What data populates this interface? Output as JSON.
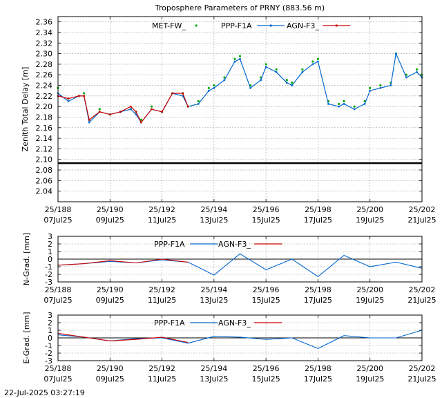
{
  "chart_data": [
    {
      "type": "line",
      "title": "Troposphere Parameters of PRNY (883.56 m)",
      "xlabel": "",
      "ylabel": "Zenith Total Delay [m]",
      "xlim": [
        188,
        202
      ],
      "ylim": [
        2.02,
        2.37
      ],
      "grid": true,
      "legend_position": "top",
      "x_ticks": [
        {
          "line1": "25/188",
          "line2": "07Jul25"
        },
        {
          "line1": "25/190",
          "line2": "09Jul25"
        },
        {
          "line1": "25/192",
          "line2": "11Jul25"
        },
        {
          "line1": "25/194",
          "line2": "13Jul25"
        },
        {
          "line1": "25/196",
          "line2": "15Jul25"
        },
        {
          "line1": "25/198",
          "line2": "17Jul25"
        },
        {
          "line1": "25/200",
          "line2": "19Jul25"
        },
        {
          "line1": "25/202",
          "line2": "21Jul25"
        }
      ],
      "y_ticks": [
        "2.04",
        "2.06",
        "2.08",
        "2.10",
        "2.12",
        "2.14",
        "2.16",
        "2.18",
        "2.20",
        "2.22",
        "2.24",
        "2.26",
        "2.28",
        "2.30",
        "2.32",
        "2.34",
        "2.36"
      ],
      "series": [
        {
          "name": "MET-FW_",
          "color": "#00aa00",
          "style": "points",
          "x": [
            188.0,
            188.4,
            188.8,
            189.0,
            189.2,
            189.6,
            190.0,
            190.4,
            190.8,
            191.0,
            191.2,
            191.6,
            192.0,
            192.4,
            192.8,
            193.0,
            193.4,
            193.8,
            194.0,
            194.4,
            194.8,
            195.0,
            195.4,
            195.8,
            196.0,
            196.4,
            196.8,
            197.0,
            197.4,
            197.8,
            198.0,
            198.4,
            198.8,
            199.0,
            199.4,
            199.8,
            200.0,
            200.4,
            200.8,
            201.0,
            201.4,
            201.8,
            202.0
          ],
          "y": [
            2.235,
            2.215,
            2.22,
            2.225,
            2.175,
            2.195,
            2.185,
            2.19,
            2.195,
            2.19,
            2.175,
            2.2,
            2.19,
            2.225,
            2.225,
            2.2,
            2.21,
            2.235,
            2.24,
            2.255,
            2.29,
            2.295,
            2.24,
            2.255,
            2.28,
            2.27,
            2.25,
            2.245,
            2.27,
            2.285,
            2.29,
            2.21,
            2.205,
            2.21,
            2.2,
            2.21,
            2.235,
            2.24,
            2.245,
            2.3,
            2.26,
            2.27,
            2.26
          ]
        },
        {
          "name": "PPP-F1A",
          "color": "#0066cc",
          "style": "linespoints",
          "x": [
            188.0,
            188.4,
            188.8,
            189.0,
            189.2,
            189.6,
            190.0,
            190.4,
            190.8,
            191.0,
            191.2,
            191.6,
            192.0,
            192.4,
            192.8,
            193.0,
            193.4,
            193.8,
            194.0,
            194.4,
            194.8,
            195.0,
            195.4,
            195.8,
            196.0,
            196.4,
            196.8,
            197.0,
            197.4,
            197.8,
            198.0,
            198.4,
            198.8,
            199.0,
            199.4,
            199.8,
            200.0,
            200.4,
            200.8,
            201.0,
            201.4,
            201.8,
            202.0
          ],
          "y": [
            2.225,
            2.21,
            2.22,
            2.22,
            2.17,
            2.19,
            2.185,
            2.19,
            2.195,
            2.185,
            2.17,
            2.195,
            2.19,
            2.225,
            2.22,
            2.2,
            2.205,
            2.23,
            2.235,
            2.25,
            2.285,
            2.29,
            2.235,
            2.25,
            2.275,
            2.265,
            2.245,
            2.24,
            2.265,
            2.28,
            2.285,
            2.205,
            2.2,
            2.205,
            2.195,
            2.205,
            2.23,
            2.235,
            2.24,
            2.3,
            2.255,
            2.265,
            2.255
          ]
        },
        {
          "name": "AGN-F3_",
          "color": "#cc0000",
          "style": "linespoints",
          "x": [
            188.0,
            188.4,
            188.8,
            189.0,
            189.2,
            189.6,
            190.0,
            190.4,
            190.8,
            191.0,
            191.2,
            191.6,
            192.0,
            192.4,
            192.8,
            193.0
          ],
          "y": [
            2.22,
            2.215,
            2.22,
            2.22,
            2.175,
            2.19,
            2.185,
            2.19,
            2.2,
            2.19,
            2.17,
            2.195,
            2.19,
            2.225,
            2.225,
            2.2
          ]
        }
      ],
      "reference_line": {
        "y": 2.093,
        "color": "#000000"
      }
    },
    {
      "type": "line",
      "title": "",
      "xlabel": "",
      "ylabel": "N-Grad. [mm]",
      "xlim": [
        188,
        202
      ],
      "ylim": [
        -3,
        3
      ],
      "grid": true,
      "legend_position": "top",
      "x_ticks": [
        {
          "line1": "25/188",
          "line2": "07Jul25"
        },
        {
          "line1": "25/190",
          "line2": "09Jul25"
        },
        {
          "line1": "25/192",
          "line2": "11Jul25"
        },
        {
          "line1": "25/194",
          "line2": "13Jul25"
        },
        {
          "line1": "25/196",
          "line2": "15Jul25"
        },
        {
          "line1": "25/198",
          "line2": "17Jul25"
        },
        {
          "line1": "25/200",
          "line2": "19Jul25"
        },
        {
          "line1": "25/202",
          "line2": "21Jul25"
        }
      ],
      "y_ticks": [
        "-3",
        "-2",
        "-1",
        "0",
        "1",
        "2",
        "3"
      ],
      "series": [
        {
          "name": "PPP-F1A",
          "color": "#0066cc",
          "style": "lines",
          "x": [
            188,
            189,
            190,
            191,
            192,
            193,
            194,
            195,
            196,
            197,
            198,
            199,
            200,
            201,
            202
          ],
          "y": [
            -0.8,
            -0.6,
            -0.3,
            -0.5,
            -0.1,
            -0.4,
            -2.1,
            0.7,
            -1.4,
            0.0,
            -2.3,
            0.5,
            -1.0,
            -0.4,
            -1.2
          ]
        },
        {
          "name": "AGN-F3_",
          "color": "#cc0000",
          "style": "lines",
          "x": [
            188,
            189,
            190,
            191,
            192,
            193
          ],
          "y": [
            -0.8,
            -0.6,
            -0.2,
            -0.5,
            0.0,
            -0.4
          ]
        }
      ],
      "reference_line": {
        "y": 0,
        "color": "#000000"
      }
    },
    {
      "type": "line",
      "title": "",
      "xlabel": "",
      "ylabel": "E-Grad. [mm]",
      "xlim": [
        188,
        202
      ],
      "ylim": [
        -3,
        3
      ],
      "grid": true,
      "legend_position": "top",
      "x_ticks": [
        {
          "line1": "25/188",
          "line2": "07Jul25"
        },
        {
          "line1": "25/190",
          "line2": "09Jul25"
        },
        {
          "line1": "25/192",
          "line2": "11Jul25"
        },
        {
          "line1": "25/194",
          "line2": "13Jul25"
        },
        {
          "line1": "25/196",
          "line2": "15Jul25"
        },
        {
          "line1": "25/198",
          "line2": "17Jul25"
        },
        {
          "line1": "25/200",
          "line2": "19Jul25"
        },
        {
          "line1": "25/202",
          "line2": "21Jul25"
        }
      ],
      "y_ticks": [
        "-3",
        "-2",
        "-1",
        "0",
        "1",
        "2",
        "3"
      ],
      "series": [
        {
          "name": "PPP-F1A",
          "color": "#0066cc",
          "style": "lines",
          "x": [
            188,
            189,
            190,
            191,
            192,
            193,
            194,
            195,
            196,
            197,
            198,
            199,
            200,
            201,
            202
          ],
          "y": [
            0.4,
            0.1,
            -0.4,
            -0.1,
            0.0,
            -0.7,
            0.2,
            0.1,
            -0.2,
            0.0,
            -1.4,
            0.3,
            0.0,
            0.0,
            1.0
          ]
        },
        {
          "name": "AGN-F3_",
          "color": "#cc0000",
          "style": "lines",
          "x": [
            188,
            189,
            190,
            191,
            192,
            193
          ],
          "y": [
            0.6,
            0.1,
            -0.4,
            -0.2,
            0.1,
            -0.6
          ]
        }
      ],
      "reference_line": {
        "y": 0,
        "color": "#000000"
      }
    }
  ],
  "footer": {
    "timestamp": "22-Jul-2025 03:27:19"
  }
}
